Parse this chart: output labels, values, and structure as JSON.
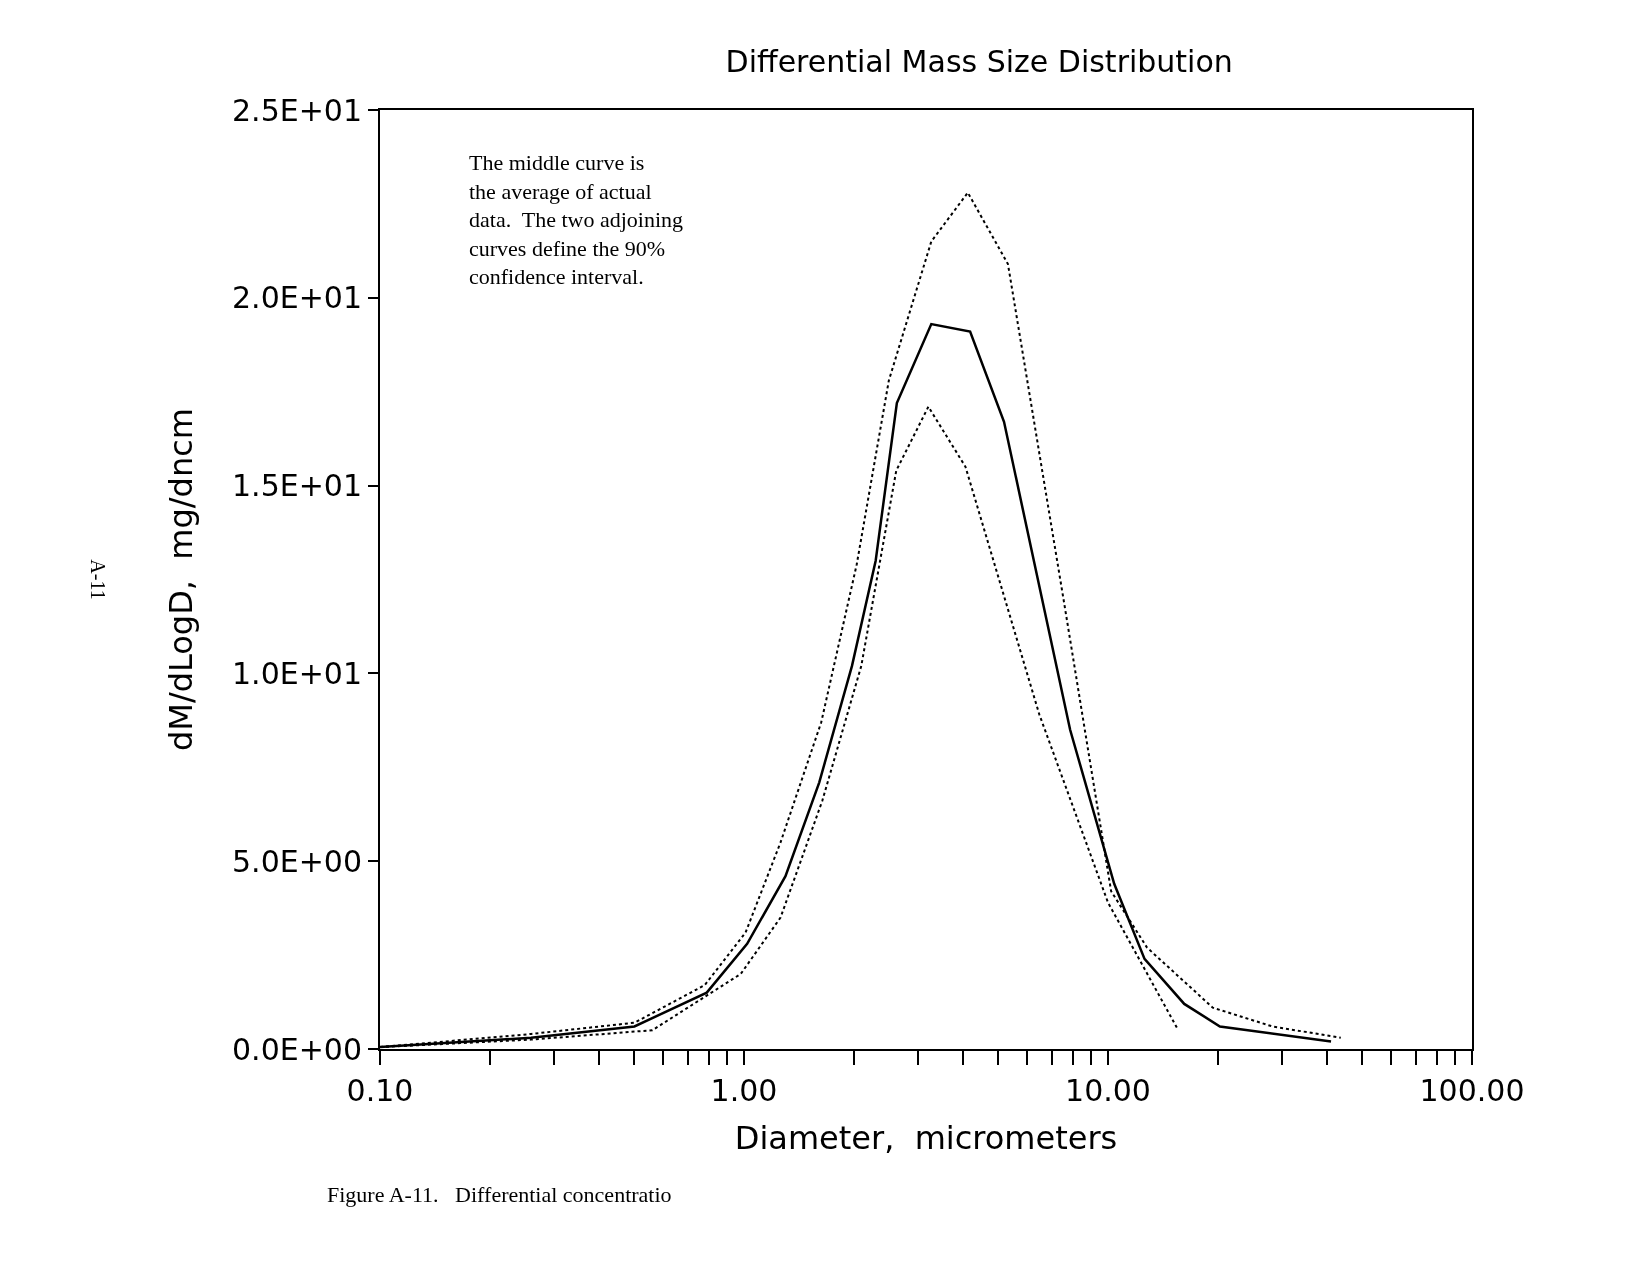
{
  "chart_data": {
    "type": "line",
    "title": "Differential Mass Size Distribution",
    "xlabel": "Diameter,  micrometers",
    "ylabel": "dM/dLogD,  mg/dncm",
    "log": "x",
    "grid": false,
    "marker": "none",
    "xlim": [
      0.1,
      100
    ],
    "ylim": [
      0,
      25
    ],
    "xticks": [
      {
        "value": 0.1,
        "label": "0.10"
      },
      {
        "value": 0.2,
        "label": null
      },
      {
        "value": 0.3,
        "label": null
      },
      {
        "value": 0.4,
        "label": null
      },
      {
        "value": 0.5,
        "label": null
      },
      {
        "value": 0.6,
        "label": null
      },
      {
        "value": 0.7,
        "label": null
      },
      {
        "value": 0.8,
        "label": null
      },
      {
        "value": 0.9,
        "label": null
      },
      {
        "value": 1,
        "label": "1.00"
      },
      {
        "value": 2,
        "label": null
      },
      {
        "value": 3,
        "label": null
      },
      {
        "value": 4,
        "label": null
      },
      {
        "value": 5,
        "label": null
      },
      {
        "value": 6,
        "label": null
      },
      {
        "value": 7,
        "label": null
      },
      {
        "value": 8,
        "label": null
      },
      {
        "value": 9,
        "label": null
      },
      {
        "value": 10,
        "label": "10.00"
      },
      {
        "value": 20,
        "label": null
      },
      {
        "value": 30,
        "label": null
      },
      {
        "value": 40,
        "label": null
      },
      {
        "value": 50,
        "label": null
      },
      {
        "value": 60,
        "label": null
      },
      {
        "value": 70,
        "label": null
      },
      {
        "value": 80,
        "label": null
      },
      {
        "value": 90,
        "label": null
      },
      {
        "value": 100,
        "label": "100.00"
      }
    ],
    "yticks": [
      {
        "value": 0,
        "label": "0.0E+00"
      },
      {
        "value": 5,
        "label": "5.0E+00"
      },
      {
        "value": 10,
        "label": "1.0E+01"
      },
      {
        "value": 15,
        "label": "1.5E+01"
      },
      {
        "value": 20,
        "label": "2.0E+01"
      },
      {
        "value": 25,
        "label": "2.5E+01"
      }
    ],
    "series": [
      {
        "color": "#000000",
        "line_style": "dotted",
        "x": [
          0.1,
          0.26,
          0.5,
          0.78,
          1.01,
          1.26,
          1.63,
          2.04,
          2.5,
          3.27,
          4.12,
          5.31,
          7.57,
          10.2,
          12.8,
          19.4,
          28.3,
          43.6
        ],
        "values": [
          0.05,
          0.4,
          0.7,
          1.7,
          3.1,
          5.5,
          8.7,
          12.9,
          17.8,
          21.5,
          22.8,
          20.9,
          11.9,
          4.2,
          2.7,
          1.1,
          0.6,
          0.3
        ]
      },
      {
        "color": "#000000",
        "line_style": "solid",
        "x": [
          0.1,
          0.26,
          0.5,
          0.79,
          1.02,
          1.3,
          1.61,
          1.98,
          2.3,
          2.63,
          3.27,
          4.18,
          5.18,
          7.87,
          10.4,
          12.6,
          16.2,
          20.3,
          41
        ],
        "values": [
          0.05,
          0.3,
          0.6,
          1.5,
          2.8,
          4.6,
          7.1,
          10.2,
          13,
          17.2,
          19.3,
          19.1,
          16.7,
          8.5,
          4.4,
          2.4,
          1.2,
          0.6,
          0.2
        ]
      },
      {
        "color": "#000000",
        "line_style": "dotted",
        "x": [
          0.1,
          0.26,
          0.56,
          0.98,
          1.26,
          1.64,
          2.1,
          2.62,
          3.21,
          4.06,
          6.48,
          10,
          15.6
        ],
        "values": [
          0.05,
          0.25,
          0.5,
          2,
          3.5,
          6.6,
          10.2,
          15.4,
          17.1,
          15.5,
          8.9,
          3.9,
          0.5
        ]
      }
    ],
    "annotations": [
      "The middle curve is the average of actual data.  The two adjoining curves define the 90% confidence interval.",
      "A-11",
      "Figure A-11.   Differential concentratio"
    ]
  }
}
